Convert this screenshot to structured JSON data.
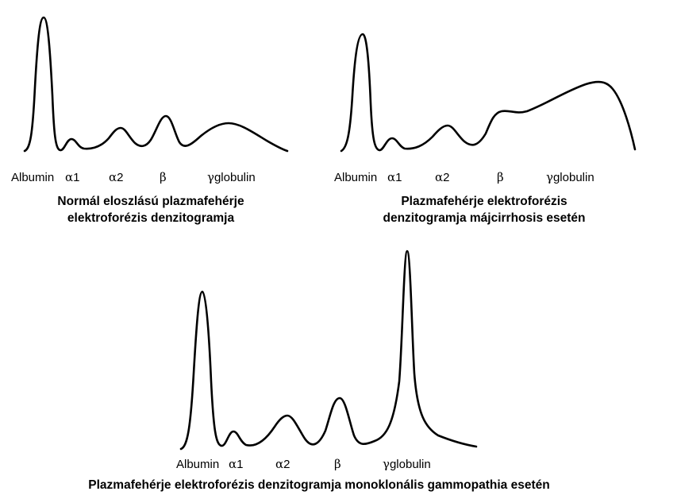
{
  "panels": [
    {
      "id": "normal",
      "caption_lines": [
        "Normál eloszlású plazmafehérje",
        "elektroforézis denzitogramja"
      ],
      "labels": {
        "albumin": "Albumin",
        "alpha": "α",
        "alpha1_num": "1",
        "alpha2_num": "2",
        "beta": "β",
        "gamma": "γ",
        "globulin": "globulin"
      }
    },
    {
      "id": "cirrhosis",
      "caption_lines": [
        "Plazmafehérje elektroforézis",
        "denzitogramja májcirrhosis esetén"
      ],
      "labels": {
        "albumin": "Albumin",
        "alpha": "α",
        "alpha1_num": "1",
        "alpha2_num": "2",
        "beta": "β",
        "gamma": "γ",
        "globulin": "globulin"
      }
    },
    {
      "id": "monoclonal",
      "caption_lines": [
        "Plazmafehérje elektroforézis denzitogramja monoklonális gammopathia esetén"
      ],
      "labels": {
        "albumin": "Albumin",
        "alpha": "α",
        "alpha1_num": "1",
        "alpha2_num": "2",
        "beta": "β",
        "gamma": "γ",
        "globulin": "globulin"
      }
    }
  ]
}
